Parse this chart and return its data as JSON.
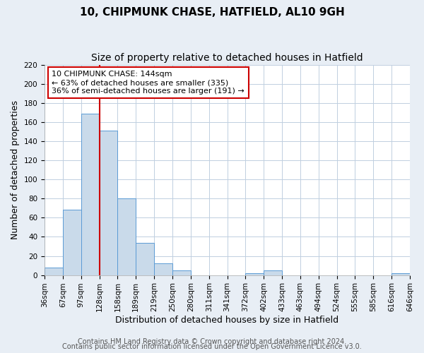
{
  "title": "10, CHIPMUNK CHASE, HATFIELD, AL10 9GH",
  "subtitle": "Size of property relative to detached houses in Hatfield",
  "xlabel": "Distribution of detached houses by size in Hatfield",
  "ylabel": "Number of detached properties",
  "bin_labels": [
    "36sqm",
    "67sqm",
    "97sqm",
    "128sqm",
    "158sqm",
    "189sqm",
    "219sqm",
    "250sqm",
    "280sqm",
    "311sqm",
    "341sqm",
    "372sqm",
    "402sqm",
    "433sqm",
    "463sqm",
    "494sqm",
    "524sqm",
    "555sqm",
    "585sqm",
    "616sqm",
    "646sqm"
  ],
  "bar_values": [
    8,
    68,
    169,
    151,
    80,
    34,
    12,
    5,
    0,
    0,
    0,
    2,
    5,
    0,
    0,
    0,
    0,
    0,
    0,
    2
  ],
  "bar_color": "#c9daea",
  "bar_edge_color": "#5b9bd5",
  "ylim": [
    0,
    220
  ],
  "yticks": [
    0,
    20,
    40,
    60,
    80,
    100,
    120,
    140,
    160,
    180,
    200,
    220
  ],
  "vline_x_index": 3,
  "vline_color": "#cc0000",
  "annotation_line1": "10 CHIPMUNK CHASE: 144sqm",
  "annotation_line2": "← 63% of detached houses are smaller (335)",
  "annotation_line3": "36% of semi-detached houses are larger (191) →",
  "annotation_box_color": "#ffffff",
  "annotation_box_edge": "#cc0000",
  "footer_line1": "Contains HM Land Registry data © Crown copyright and database right 2024.",
  "footer_line2": "Contains public sector information licensed under the Open Government Licence v3.0.",
  "background_color": "#e8eef5",
  "plot_background": "#ffffff",
  "grid_color": "#c0cfe0",
  "title_fontsize": 11,
  "subtitle_fontsize": 10,
  "axis_label_fontsize": 9,
  "tick_fontsize": 7.5,
  "annotation_fontsize": 8,
  "footer_fontsize": 7
}
